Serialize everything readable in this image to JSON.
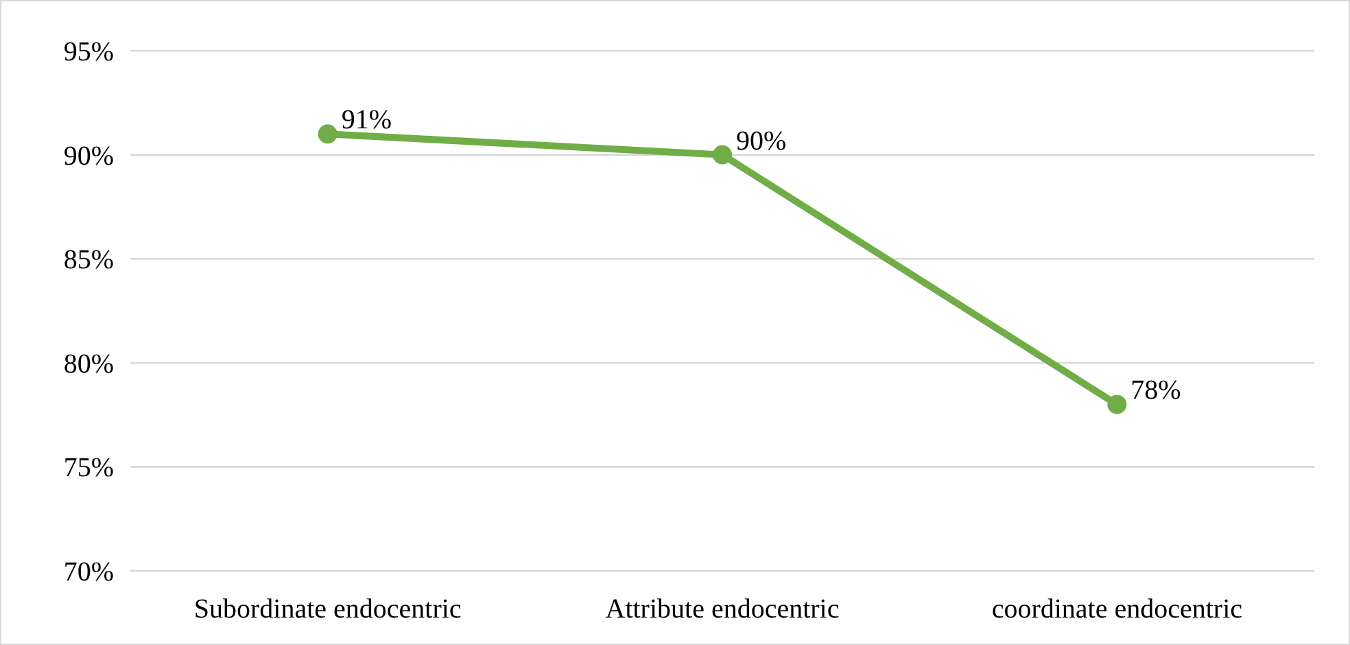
{
  "chart_data": {
    "type": "line",
    "categories": [
      "Subordinate endocentric",
      "Attribute endocentric",
      "coordinate endocentric"
    ],
    "series": [
      {
        "color": "#70ad47",
        "values": [
          91,
          90,
          78
        ],
        "value_labels": [
          "91%",
          "90%",
          "78%"
        ]
      }
    ],
    "ylim": [
      70,
      95
    ],
    "yticks": [
      {
        "value": 70,
        "label": "70%"
      },
      {
        "value": 75,
        "label": "75%"
      },
      {
        "value": 80,
        "label": "80%"
      },
      {
        "value": 85,
        "label": "85%"
      },
      {
        "value": 90,
        "label": "90%"
      },
      {
        "value": 95,
        "label": "95%"
      }
    ],
    "grid": "y",
    "marker": "circle",
    "line_style": "solid"
  }
}
